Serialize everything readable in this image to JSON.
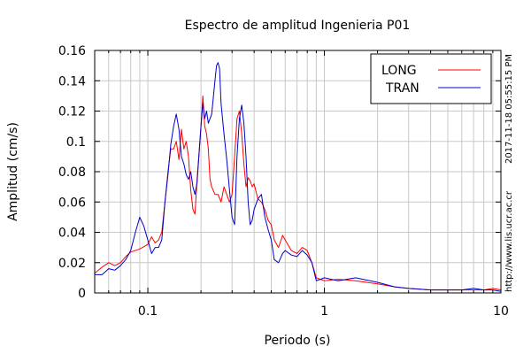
{
  "chart_data": {
    "type": "line",
    "title": "Espectro de amplitud Ingenieria P01",
    "xlabel": "Periodo (s)",
    "ylabel": "Amplitud (cm/s)",
    "x_scale": "log",
    "xlim": [
      0.05,
      10
    ],
    "ylim": [
      0,
      0.16
    ],
    "grid": true,
    "legend_position": "top-right",
    "x_ticks": [
      "0.1",
      "1",
      "10"
    ],
    "y_ticks": [
      "0",
      "0.02",
      "0.04",
      "0.06",
      "0.08",
      "0.1",
      "0.12",
      "0.14",
      "0.16"
    ],
    "side_text": [
      "http://www.lis.ucr.ac.cr",
      "2017-11-18 05:55:15 PM"
    ],
    "series": [
      {
        "name": "LONG",
        "color": "#ff0000",
        "points": [
          [
            0.05,
            0.013
          ],
          [
            0.055,
            0.017
          ],
          [
            0.06,
            0.02
          ],
          [
            0.065,
            0.018
          ],
          [
            0.07,
            0.02
          ],
          [
            0.075,
            0.024
          ],
          [
            0.08,
            0.027
          ],
          [
            0.09,
            0.029
          ],
          [
            0.1,
            0.032
          ],
          [
            0.105,
            0.037
          ],
          [
            0.11,
            0.033
          ],
          [
            0.115,
            0.035
          ],
          [
            0.12,
            0.04
          ],
          [
            0.125,
            0.06
          ],
          [
            0.13,
            0.08
          ],
          [
            0.135,
            0.095
          ],
          [
            0.14,
            0.095
          ],
          [
            0.145,
            0.1
          ],
          [
            0.15,
            0.088
          ],
          [
            0.155,
            0.108
          ],
          [
            0.16,
            0.095
          ],
          [
            0.165,
            0.1
          ],
          [
            0.17,
            0.09
          ],
          [
            0.175,
            0.068
          ],
          [
            0.18,
            0.055
          ],
          [
            0.185,
            0.052
          ],
          [
            0.19,
            0.075
          ],
          [
            0.2,
            0.11
          ],
          [
            0.205,
            0.13
          ],
          [
            0.21,
            0.11
          ],
          [
            0.215,
            0.105
          ],
          [
            0.22,
            0.095
          ],
          [
            0.225,
            0.075
          ],
          [
            0.23,
            0.07
          ],
          [
            0.24,
            0.065
          ],
          [
            0.25,
            0.065
          ],
          [
            0.26,
            0.06
          ],
          [
            0.27,
            0.07
          ],
          [
            0.28,
            0.065
          ],
          [
            0.29,
            0.06
          ],
          [
            0.3,
            0.065
          ],
          [
            0.31,
            0.09
          ],
          [
            0.32,
            0.115
          ],
          [
            0.33,
            0.12
          ],
          [
            0.34,
            0.105
          ],
          [
            0.35,
            0.085
          ],
          [
            0.36,
            0.07
          ],
          [
            0.37,
            0.076
          ],
          [
            0.38,
            0.074
          ],
          [
            0.39,
            0.07
          ],
          [
            0.4,
            0.072
          ],
          [
            0.42,
            0.062
          ],
          [
            0.44,
            0.06
          ],
          [
            0.46,
            0.055
          ],
          [
            0.48,
            0.048
          ],
          [
            0.5,
            0.045
          ],
          [
            0.52,
            0.035
          ],
          [
            0.55,
            0.03
          ],
          [
            0.58,
            0.038
          ],
          [
            0.6,
            0.035
          ],
          [
            0.65,
            0.028
          ],
          [
            0.7,
            0.026
          ],
          [
            0.75,
            0.03
          ],
          [
            0.8,
            0.028
          ],
          [
            0.85,
            0.02
          ],
          [
            0.9,
            0.01
          ],
          [
            1,
            0.008
          ],
          [
            1.2,
            0.009
          ],
          [
            1.5,
            0.008
          ],
          [
            2,
            0.006
          ],
          [
            2.5,
            0.004
          ],
          [
            3,
            0.003
          ],
          [
            4,
            0.002
          ],
          [
            5,
            0.002
          ],
          [
            6,
            0.002
          ],
          [
            7,
            0.002
          ],
          [
            8,
            0.002
          ],
          [
            9,
            0.003
          ],
          [
            10,
            0.002
          ]
        ]
      },
      {
        "name": "TRAN",
        "color": "#0000cc",
        "points": [
          [
            0.05,
            0.012
          ],
          [
            0.055,
            0.012
          ],
          [
            0.06,
            0.016
          ],
          [
            0.065,
            0.015
          ],
          [
            0.07,
            0.018
          ],
          [
            0.075,
            0.022
          ],
          [
            0.08,
            0.028
          ],
          [
            0.085,
            0.04
          ],
          [
            0.09,
            0.05
          ],
          [
            0.095,
            0.044
          ],
          [
            0.1,
            0.035
          ],
          [
            0.105,
            0.026
          ],
          [
            0.11,
            0.03
          ],
          [
            0.115,
            0.03
          ],
          [
            0.12,
            0.035
          ],
          [
            0.125,
            0.06
          ],
          [
            0.13,
            0.078
          ],
          [
            0.135,
            0.098
          ],
          [
            0.14,
            0.11
          ],
          [
            0.145,
            0.118
          ],
          [
            0.15,
            0.108
          ],
          [
            0.155,
            0.09
          ],
          [
            0.16,
            0.085
          ],
          [
            0.165,
            0.078
          ],
          [
            0.17,
            0.075
          ],
          [
            0.175,
            0.08
          ],
          [
            0.18,
            0.07
          ],
          [
            0.185,
            0.065
          ],
          [
            0.19,
            0.073
          ],
          [
            0.2,
            0.11
          ],
          [
            0.205,
            0.125
          ],
          [
            0.21,
            0.115
          ],
          [
            0.215,
            0.12
          ],
          [
            0.22,
            0.112
          ],
          [
            0.23,
            0.118
          ],
          [
            0.24,
            0.14
          ],
          [
            0.245,
            0.15
          ],
          [
            0.25,
            0.152
          ],
          [
            0.255,
            0.148
          ],
          [
            0.26,
            0.125
          ],
          [
            0.27,
            0.105
          ],
          [
            0.28,
            0.088
          ],
          [
            0.29,
            0.068
          ],
          [
            0.3,
            0.05
          ],
          [
            0.31,
            0.045
          ],
          [
            0.32,
            0.09
          ],
          [
            0.33,
            0.115
          ],
          [
            0.34,
            0.124
          ],
          [
            0.35,
            0.112
          ],
          [
            0.36,
            0.09
          ],
          [
            0.37,
            0.06
          ],
          [
            0.38,
            0.045
          ],
          [
            0.39,
            0.048
          ],
          [
            0.4,
            0.055
          ],
          [
            0.42,
            0.062
          ],
          [
            0.44,
            0.065
          ],
          [
            0.46,
            0.05
          ],
          [
            0.48,
            0.042
          ],
          [
            0.5,
            0.035
          ],
          [
            0.52,
            0.022
          ],
          [
            0.55,
            0.02
          ],
          [
            0.58,
            0.026
          ],
          [
            0.6,
            0.028
          ],
          [
            0.65,
            0.025
          ],
          [
            0.7,
            0.024
          ],
          [
            0.75,
            0.028
          ],
          [
            0.8,
            0.025
          ],
          [
            0.85,
            0.02
          ],
          [
            0.9,
            0.008
          ],
          [
            1,
            0.01
          ],
          [
            1.2,
            0.008
          ],
          [
            1.5,
            0.01
          ],
          [
            2,
            0.007
          ],
          [
            2.5,
            0.004
          ],
          [
            3,
            0.003
          ],
          [
            4,
            0.002
          ],
          [
            5,
            0.002
          ],
          [
            6,
            0.002
          ],
          [
            7,
            0.003
          ],
          [
            8,
            0.002
          ],
          [
            9,
            0.002
          ],
          [
            10,
            0.001
          ]
        ]
      }
    ]
  }
}
